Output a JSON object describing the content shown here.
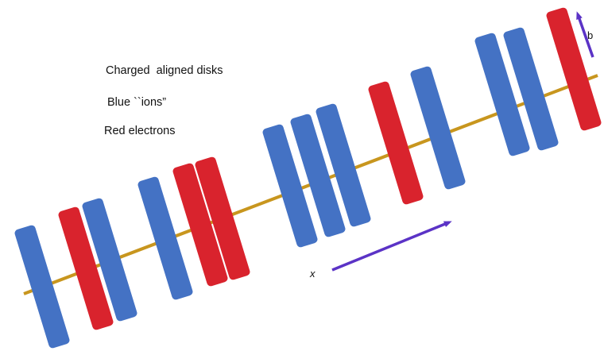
{
  "captions": {
    "line1": "Charged  aligned disks",
    "line2": "Blue ``ions”",
    "line3": "Red electrons"
  },
  "arrows": {
    "x_label": "x",
    "b_label": "b"
  },
  "colors": {
    "ion": "#4472C4",
    "electron": "#D9232D",
    "axis": "#C8961E",
    "arrow": "#5B33C6"
  },
  "disks": [
    {
      "kind": "ion"
    },
    {
      "kind": "electron"
    },
    {
      "kind": "ion"
    },
    {
      "kind": "ion"
    },
    {
      "kind": "electron"
    },
    {
      "kind": "electron"
    },
    {
      "kind": "ion"
    },
    {
      "kind": "ion"
    },
    {
      "kind": "ion"
    },
    {
      "kind": "electron"
    },
    {
      "kind": "ion"
    },
    {
      "kind": "ion"
    },
    {
      "kind": "ion"
    },
    {
      "kind": "electron"
    }
  ]
}
